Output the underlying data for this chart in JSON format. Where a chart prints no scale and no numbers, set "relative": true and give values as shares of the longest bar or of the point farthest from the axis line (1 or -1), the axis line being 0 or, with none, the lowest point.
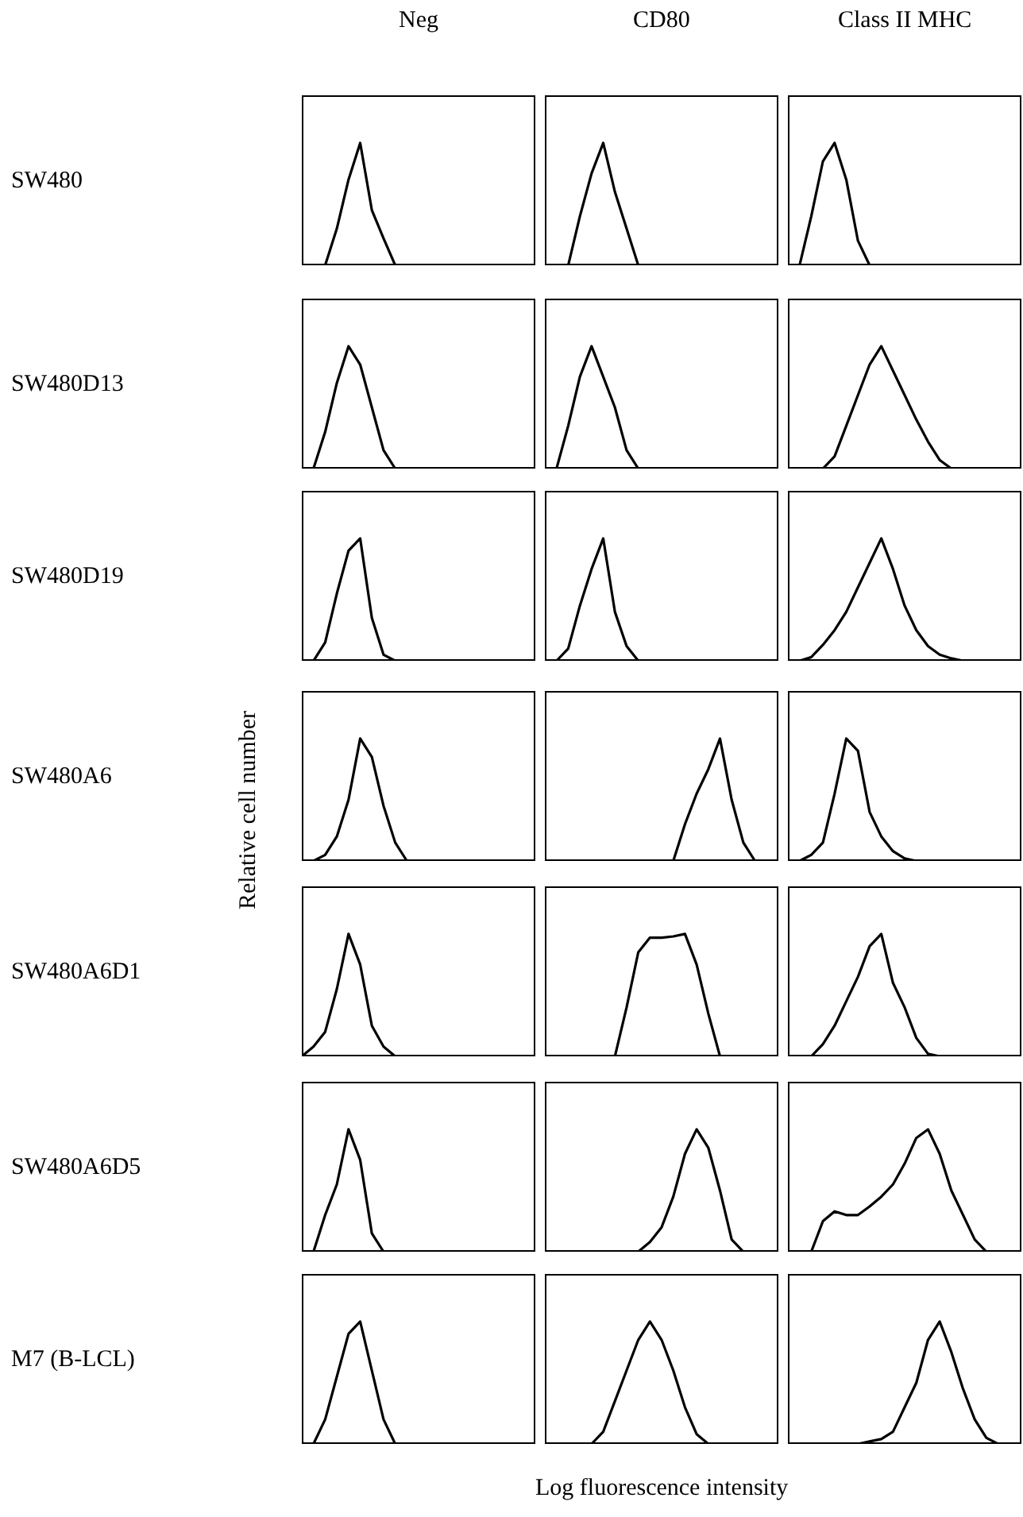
{
  "chart_data": [
    {
      "type": "line",
      "relative": true,
      "title": "Neg",
      "ylabel": "SW480",
      "color": "#000000",
      "categories": [
        null,
        null,
        null,
        null,
        null,
        null,
        null,
        null,
        null,
        null,
        null,
        null,
        null,
        null,
        null,
        null,
        null,
        null,
        null,
        null,
        null
      ],
      "values": [
        0,
        0,
        0,
        0.3,
        0.7,
        1,
        0.45,
        0.22,
        0,
        0,
        0,
        0,
        0,
        0,
        0,
        0,
        0,
        0,
        0,
        0,
        0
      ]
    },
    {
      "type": "line",
      "relative": true,
      "title": "CD80",
      "color": "#000000",
      "categories": [
        null,
        null,
        null,
        null,
        null,
        null,
        null,
        null,
        null,
        null,
        null,
        null,
        null,
        null,
        null,
        null,
        null,
        null,
        null,
        null,
        null
      ],
      "values": [
        0,
        0,
        0,
        0.4,
        0.75,
        1,
        0.6,
        0.3,
        0,
        0,
        0,
        0,
        0,
        0,
        0,
        0,
        0,
        0,
        0,
        0,
        0
      ]
    },
    {
      "type": "line",
      "relative": true,
      "title": "Class II MHC",
      "color": "#000000",
      "categories": [
        null,
        null,
        null,
        null,
        null,
        null,
        null,
        null,
        null,
        null,
        null,
        null,
        null,
        null,
        null,
        null,
        null,
        null,
        null,
        null,
        null
      ],
      "values": [
        0,
        0,
        0.4,
        0.85,
        1,
        0.7,
        0.2,
        0,
        0,
        0,
        0,
        0,
        0,
        0,
        0,
        0,
        0,
        0,
        0,
        0,
        0
      ]
    },
    {
      "type": "line",
      "relative": true,
      "ylabel": "SW480D13",
      "color": "#000000",
      "categories": [
        null,
        null,
        null,
        null,
        null,
        null,
        null,
        null,
        null,
        null,
        null,
        null,
        null,
        null,
        null,
        null,
        null,
        null,
        null,
        null,
        null
      ],
      "values": [
        0,
        0,
        0.3,
        0.7,
        1,
        0.85,
        0.5,
        0.15,
        0,
        0,
        0,
        0,
        0,
        0,
        0,
        0,
        0,
        0,
        0,
        0,
        0
      ]
    },
    {
      "type": "line",
      "relative": true,
      "color": "#000000",
      "categories": [
        null,
        null,
        null,
        null,
        null,
        null,
        null,
        null,
        null,
        null,
        null,
        null,
        null,
        null,
        null,
        null,
        null,
        null,
        null,
        null,
        null
      ],
      "values": [
        0,
        0,
        0.35,
        0.75,
        1,
        0.75,
        0.5,
        0.15,
        0,
        0,
        0,
        0,
        0,
        0,
        0,
        0,
        0,
        0,
        0,
        0,
        0
      ]
    },
    {
      "type": "line",
      "relative": true,
      "color": "#000000",
      "categories": [
        null,
        null,
        null,
        null,
        null,
        null,
        null,
        null,
        null,
        null,
        null,
        null,
        null,
        null,
        null,
        null,
        null,
        null,
        null,
        null,
        null
      ],
      "values": [
        0,
        0,
        0,
        0,
        0.1,
        0.35,
        0.6,
        0.85,
        1,
        0.8,
        0.6,
        0.4,
        0.22,
        0.07,
        0,
        0,
        0,
        0,
        0,
        0,
        0
      ]
    },
    {
      "type": "line",
      "relative": true,
      "ylabel": "SW480D19",
      "color": "#000000",
      "categories": [
        null,
        null,
        null,
        null,
        null,
        null,
        null,
        null,
        null,
        null,
        null,
        null,
        null,
        null,
        null,
        null,
        null,
        null,
        null,
        null,
        null
      ],
      "values": [
        0,
        0,
        0.15,
        0.55,
        0.9,
        1,
        0.35,
        0.05,
        0,
        0,
        0,
        0,
        0,
        0,
        0,
        0,
        0,
        0,
        0,
        0,
        0
      ]
    },
    {
      "type": "line",
      "relative": true,
      "color": "#000000",
      "categories": [
        null,
        null,
        null,
        null,
        null,
        null,
        null,
        null,
        null,
        null,
        null,
        null,
        null,
        null,
        null,
        null,
        null,
        null,
        null,
        null,
        null
      ],
      "values": [
        0,
        0,
        0.1,
        0.45,
        0.75,
        1,
        0.4,
        0.12,
        0,
        0,
        0,
        0,
        0,
        0,
        0,
        0,
        0,
        0,
        0,
        0,
        0
      ]
    },
    {
      "type": "line",
      "relative": true,
      "color": "#000000",
      "categories": [
        null,
        null,
        null,
        null,
        null,
        null,
        null,
        null,
        null,
        null,
        null,
        null,
        null,
        null,
        null,
        null,
        null,
        null,
        null,
        null,
        null
      ],
      "values": [
        0,
        0,
        0.03,
        0.13,
        0.25,
        0.4,
        0.6,
        0.8,
        1,
        0.75,
        0.45,
        0.25,
        0.12,
        0.05,
        0.02,
        0,
        0,
        0,
        0,
        0,
        0
      ]
    },
    {
      "type": "line",
      "relative": true,
      "ylabel": "SW480A6",
      "annotations": [
        "Relative cell number"
      ],
      "color": "#000000",
      "categories": [
        null,
        null,
        null,
        null,
        null,
        null,
        null,
        null,
        null,
        null,
        null,
        null,
        null,
        null,
        null,
        null,
        null,
        null,
        null,
        null,
        null
      ],
      "values": [
        0,
        0,
        0.05,
        0.2,
        0.5,
        1,
        0.85,
        0.45,
        0.15,
        0,
        0,
        0,
        0,
        0,
        0,
        0,
        0,
        0,
        0,
        0,
        0
      ]
    },
    {
      "type": "line",
      "relative": true,
      "color": "#000000",
      "categories": [
        null,
        null,
        null,
        null,
        null,
        null,
        null,
        null,
        null,
        null,
        null,
        null,
        null,
        null,
        null,
        null,
        null,
        null,
        null,
        null,
        null
      ],
      "values": [
        0,
        0,
        0,
        0,
        0,
        0,
        0,
        0,
        0,
        0,
        0,
        0,
        0.3,
        0.55,
        0.75,
        1,
        0.5,
        0.15,
        0,
        0,
        0
      ]
    },
    {
      "type": "line",
      "relative": true,
      "color": "#000000",
      "categories": [
        null,
        null,
        null,
        null,
        null,
        null,
        null,
        null,
        null,
        null,
        null,
        null,
        null,
        null,
        null,
        null,
        null,
        null,
        null,
        null,
        null
      ],
      "values": [
        0,
        0,
        0.05,
        0.15,
        0.55,
        1,
        0.9,
        0.4,
        0.2,
        0.08,
        0.02,
        0,
        0,
        0,
        0,
        0,
        0,
        0,
        0,
        0,
        0
      ]
    },
    {
      "type": "line",
      "relative": true,
      "ylabel": "SW480A6D1",
      "color": "#000000",
      "categories": [
        null,
        null,
        null,
        null,
        null,
        null,
        null,
        null,
        null,
        null,
        null,
        null,
        null,
        null,
        null,
        null,
        null,
        null,
        null,
        null,
        null
      ],
      "values": [
        0,
        0.08,
        0.2,
        0.55,
        1,
        0.75,
        0.25,
        0.08,
        0,
        0,
        0,
        0,
        0,
        0,
        0,
        0,
        0,
        0,
        0,
        0,
        0
      ]
    },
    {
      "type": "line",
      "relative": true,
      "color": "#000000",
      "categories": [
        null,
        null,
        null,
        null,
        null,
        null,
        null,
        null,
        null,
        null,
        null,
        null,
        null,
        null,
        null,
        null,
        null,
        null,
        null,
        null,
        null
      ],
      "values": [
        0,
        0,
        0,
        0,
        0,
        0,
        0,
        0.4,
        0.85,
        0.97,
        0.97,
        0.98,
        1,
        0.75,
        0.35,
        0,
        0,
        0,
        0,
        0,
        0
      ]
    },
    {
      "type": "line",
      "relative": true,
      "color": "#000000",
      "categories": [
        null,
        null,
        null,
        null,
        null,
        null,
        null,
        null,
        null,
        null,
        null,
        null,
        null,
        null,
        null,
        null,
        null,
        null,
        null,
        null,
        null
      ],
      "values": [
        0,
        0,
        0,
        0.1,
        0.25,
        0.45,
        0.65,
        0.9,
        1,
        0.6,
        0.4,
        0.15,
        0.02,
        0,
        0,
        0,
        0,
        0,
        0,
        0,
        0
      ]
    },
    {
      "type": "line",
      "relative": true,
      "ylabel": "SW480A6D5",
      "color": "#000000",
      "categories": [
        null,
        null,
        null,
        null,
        null,
        null,
        null,
        null,
        null,
        null,
        null,
        null,
        null,
        null,
        null,
        null,
        null,
        null,
        null,
        null,
        null
      ],
      "values": [
        0,
        0,
        0.3,
        0.55,
        1,
        0.75,
        0.15,
        0,
        0,
        0,
        0,
        0,
        0,
        0,
        0,
        0,
        0,
        0,
        0,
        0,
        0
      ]
    },
    {
      "type": "line",
      "relative": true,
      "color": "#000000",
      "categories": [
        null,
        null,
        null,
        null,
        null,
        null,
        null,
        null,
        null,
        null,
        null,
        null,
        null,
        null,
        null,
        null,
        null,
        null,
        null,
        null,
        null
      ],
      "values": [
        0,
        0,
        0,
        0,
        0,
        0,
        0,
        0,
        0,
        0.08,
        0.2,
        0.45,
        0.8,
        1,
        0.85,
        0.5,
        0.1,
        0,
        0,
        0,
        0
      ]
    },
    {
      "type": "line",
      "relative": true,
      "color": "#000000",
      "categories": [
        null,
        null,
        null,
        null,
        null,
        null,
        null,
        null,
        null,
        null,
        null,
        null,
        null,
        null,
        null,
        null,
        null,
        null,
        null,
        null,
        null
      ],
      "values": [
        0,
        0,
        0,
        0.25,
        0.33,
        0.3,
        0.3,
        0.37,
        0.45,
        0.55,
        0.72,
        0.93,
        1,
        0.8,
        0.5,
        0.3,
        0.1,
        0,
        0,
        0,
        0
      ]
    },
    {
      "type": "line",
      "relative": true,
      "ylabel": "M7 (B-LCL)",
      "color": "#000000",
      "categories": [
        null,
        null,
        null,
        null,
        null,
        null,
        null,
        null,
        null,
        null,
        null,
        null,
        null,
        null,
        null,
        null,
        null,
        null,
        null,
        null,
        null
      ],
      "values": [
        0,
        0,
        0.2,
        0.55,
        0.9,
        1,
        0.6,
        0.2,
        0,
        0,
        0,
        0,
        0,
        0,
        0,
        0,
        0,
        0,
        0,
        0,
        0
      ]
    },
    {
      "type": "line",
      "relative": true,
      "xlabel": "Log fluorescence intensity",
      "color": "#000000",
      "categories": [
        null,
        null,
        null,
        null,
        null,
        null,
        null,
        null,
        null,
        null,
        null,
        null,
        null,
        null,
        null,
        null,
        null,
        null,
        null,
        null,
        null
      ],
      "values": [
        0,
        0,
        0,
        0,
        0,
        0.1,
        0.35,
        0.6,
        0.85,
        1,
        0.85,
        0.6,
        0.3,
        0.08,
        0,
        0,
        0,
        0,
        0,
        0,
        0
      ]
    },
    {
      "type": "line",
      "relative": true,
      "color": "#000000",
      "categories": [
        null,
        null,
        null,
        null,
        null,
        null,
        null,
        null,
        null,
        null,
        null,
        null,
        null,
        null,
        null,
        null,
        null,
        null,
        null,
        null,
        null
      ],
      "values": [
        0,
        0,
        0,
        0,
        0,
        0,
        0,
        0.02,
        0.04,
        0.1,
        0.3,
        0.5,
        0.85,
        1,
        0.75,
        0.45,
        0.2,
        0.05,
        0,
        0,
        0
      ]
    }
  ]
}
